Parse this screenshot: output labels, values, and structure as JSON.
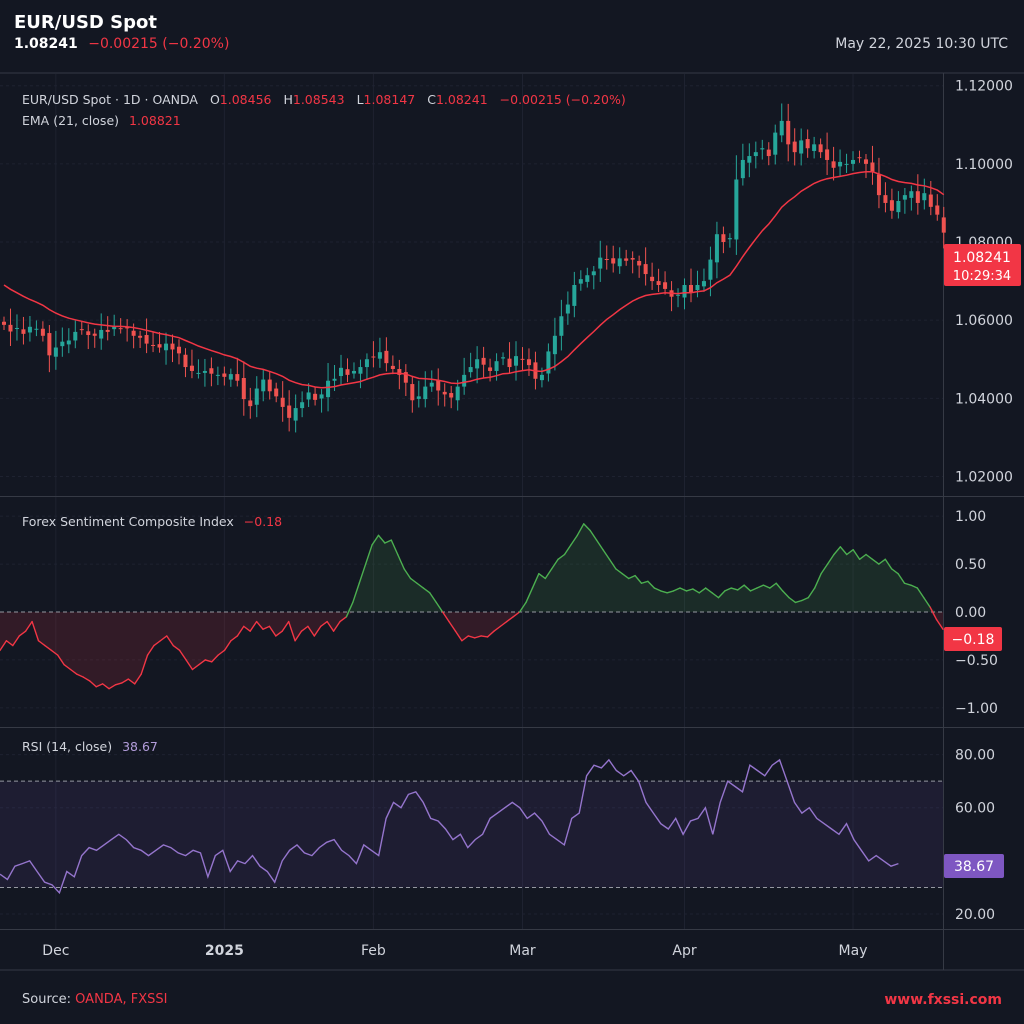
{
  "header": {
    "title": "EUR/USD Spot",
    "price": "1.08241",
    "change": "−0.00215 (−0.20%)",
    "datetime": "May 22, 2025 10:30 UTC"
  },
  "footer": {
    "source_label": "Source:",
    "source_value": "OANDA, FXSSI",
    "site": "www.fxssi.com"
  },
  "colors": {
    "up": "#26a69a",
    "down": "#ef5350",
    "ema": "#f23645",
    "sent_pos": "#4caf50",
    "sent_neg": "#f23645",
    "rsi": "#9575cd",
    "background": "#131722",
    "grid": "#1e2230"
  },
  "chart_data": [
    {
      "type": "candlestick",
      "legend": {
        "symbol": "EUR/USD Spot · 1D · OANDA",
        "o_label": "O",
        "o": "1.08456",
        "h_label": "H",
        "h": "1.08543",
        "l_label": "L",
        "l": "1.08147",
        "c_label": "C",
        "c": "1.08241",
        "change": "−0.00215 (−0.20%)",
        "ema_label": "EMA (21, close)",
        "ema_value": "1.08821"
      },
      "ylim": [
        1.015,
        1.123
      ],
      "y_ticks": [
        "1.12000",
        "1.10000",
        "1.08000",
        "1.06000",
        "1.04000",
        "1.02000"
      ],
      "last_price_label": "1.08241",
      "countdown_label": "10:29:34",
      "x_ticks": [
        "Dec",
        "2025",
        "Feb",
        "Mar",
        "Apr",
        "May"
      ],
      "x_tick_index": [
        8,
        34,
        57,
        80,
        105,
        131
      ],
      "closes": [
        1.0588,
        1.0571,
        1.058,
        1.0565,
        1.0583,
        1.0578,
        1.056,
        1.051,
        1.053,
        1.0545,
        1.0548,
        1.057,
        1.0575,
        1.0562,
        1.056,
        1.0575,
        1.057,
        1.0583,
        1.0578,
        1.058,
        1.056,
        1.0555,
        1.054,
        1.0535,
        1.053,
        1.054,
        1.0525,
        1.0515,
        1.048,
        1.047,
        1.0465,
        1.047,
        1.0463,
        1.046,
        1.0455,
        1.0462,
        1.0445,
        1.0398,
        1.038,
        1.0425,
        1.0448,
        1.0418,
        1.0405,
        1.0378,
        1.035,
        1.0375,
        1.039,
        1.0415,
        1.0396,
        1.041,
        1.0445,
        1.045,
        1.0478,
        1.046,
        1.047,
        1.048,
        1.05,
        1.0505,
        1.0518,
        1.049,
        1.0475,
        1.046,
        1.044,
        1.0395,
        1.0405,
        1.043,
        1.044,
        1.042,
        1.041,
        1.0402,
        1.043,
        1.046,
        1.048,
        1.05,
        1.0486,
        1.047,
        1.0495,
        1.0505,
        1.048,
        1.0508,
        1.05,
        1.0485,
        1.045,
        1.046,
        1.052,
        1.056,
        1.061,
        1.064,
        1.069,
        1.0705,
        1.0715,
        1.0725,
        1.076,
        1.0755,
        1.0745,
        1.0758,
        1.0752,
        1.0755,
        1.074,
        1.0718,
        1.07,
        1.069,
        1.068,
        1.066,
        1.0665,
        1.069,
        1.067,
        1.069,
        1.07,
        1.0755,
        1.082,
        1.08,
        1.081,
        1.096,
        1.101,
        1.102,
        1.103,
        1.104,
        1.102,
        1.108,
        1.111,
        1.105,
        1.103,
        1.106,
        1.104,
        1.105,
        1.103,
        1.101,
        1.099,
        1.1005,
        1.1,
        1.101,
        1.1015,
        1.1,
        1.098,
        1.092,
        1.09,
        1.088,
        1.0905,
        1.092,
        1.093,
        1.09,
        1.0925,
        1.089,
        1.087,
        1.0824
      ],
      "ema": [
        1.069,
        1.0679,
        1.067,
        1.0661,
        1.0653,
        1.0646,
        1.0638,
        1.0627,
        1.0618,
        1.0611,
        1.0605,
        1.0601,
        1.0597,
        1.0593,
        1.059,
        1.0588,
        1.0586,
        1.0584,
        1.0584,
        1.0583,
        1.0581,
        1.0578,
        1.0574,
        1.057,
        1.0566,
        1.0563,
        1.0559,
        1.0555,
        1.0548,
        1.0541,
        1.0534,
        1.0528,
        1.0522,
        1.0517,
        1.0511,
        1.0507,
        1.0501,
        1.0492,
        1.0482,
        1.0477,
        1.0474,
        1.0469,
        1.0463,
        1.0456,
        1.0446,
        1.044,
        1.0435,
        1.0433,
        1.0429,
        1.0427,
        1.0428,
        1.043,
        1.0434,
        1.0437,
        1.044,
        1.0443,
        1.0449,
        1.0454,
        1.046,
        1.0463,
        1.0464,
        1.0464,
        1.0462,
        1.0456,
        1.0451,
        1.045,
        1.0449,
        1.0446,
        1.0443,
        1.0439,
        1.0438,
        1.0441,
        1.0444,
        1.0449,
        1.0452,
        1.0454,
        1.0458,
        1.0463,
        1.0464,
        1.0468,
        1.0471,
        1.0473,
        1.047,
        1.0469,
        1.0474,
        1.0482,
        1.0494,
        1.0507,
        1.0524,
        1.054,
        1.0556,
        1.0571,
        1.0587,
        1.0602,
        1.0614,
        1.0627,
        1.0638,
        1.0649,
        1.0657,
        1.0663,
        1.0666,
        1.0668,
        1.067,
        1.0669,
        1.0668,
        1.067,
        1.067,
        1.0673,
        1.0675,
        1.0683,
        1.0696,
        1.0705,
        1.0715,
        1.0738,
        1.0763,
        1.0786,
        1.0808,
        1.0829,
        1.0846,
        1.0867,
        1.0889,
        1.0904,
        1.0916,
        1.093,
        1.094,
        1.095,
        1.0957,
        1.0962,
        1.0965,
        1.0968,
        1.0971,
        1.0975,
        1.0978,
        1.098,
        1.098,
        1.0974,
        1.0968,
        1.096,
        1.0955,
        1.0952,
        1.095,
        1.0946,
        1.0944,
        1.0939,
        1.0933,
        1.0921
      ]
    },
    {
      "type": "area",
      "title": "Forex Sentiment Composite Index",
      "value_label": "−0.18",
      "ylim": [
        -1.2,
        1.2
      ],
      "y_ticks": [
        "1.00",
        "0.50",
        "0.00",
        "−0.50",
        "−1.00"
      ],
      "values": [
        -0.4,
        -0.3,
        -0.35,
        -0.25,
        -0.2,
        -0.1,
        -0.3,
        -0.35,
        -0.4,
        -0.45,
        -0.55,
        -0.6,
        -0.65,
        -0.68,
        -0.72,
        -0.78,
        -0.75,
        -0.8,
        -0.76,
        -0.74,
        -0.7,
        -0.75,
        -0.65,
        -0.45,
        -0.35,
        -0.3,
        -0.25,
        -0.35,
        -0.4,
        -0.5,
        -0.6,
        -0.55,
        -0.5,
        -0.52,
        -0.45,
        -0.4,
        -0.3,
        -0.25,
        -0.15,
        -0.2,
        -0.1,
        -0.18,
        -0.15,
        -0.25,
        -0.2,
        -0.1,
        -0.3,
        -0.2,
        -0.15,
        -0.25,
        -0.15,
        -0.1,
        -0.2,
        -0.1,
        -0.05,
        0.1,
        0.3,
        0.5,
        0.7,
        0.8,
        0.72,
        0.75,
        0.6,
        0.45,
        0.35,
        0.3,
        0.25,
        0.2,
        0.1,
        0.0,
        -0.1,
        -0.2,
        -0.3,
        -0.25,
        -0.27,
        -0.25,
        -0.26,
        -0.2,
        -0.15,
        -0.1,
        -0.05,
        0.0,
        0.1,
        0.25,
        0.4,
        0.35,
        0.45,
        0.55,
        0.6,
        0.7,
        0.8,
        0.92,
        0.85,
        0.75,
        0.65,
        0.55,
        0.45,
        0.4,
        0.35,
        0.38,
        0.3,
        0.32,
        0.25,
        0.22,
        0.2,
        0.22,
        0.25,
        0.22,
        0.24,
        0.2,
        0.25,
        0.2,
        0.15,
        0.22,
        0.25,
        0.23,
        0.28,
        0.22,
        0.25,
        0.28,
        0.25,
        0.3,
        0.22,
        0.15,
        0.1,
        0.12,
        0.15,
        0.25,
        0.4,
        0.5,
        0.6,
        0.68,
        0.6,
        0.65,
        0.55,
        0.6,
        0.55,
        0.5,
        0.55,
        0.45,
        0.4,
        0.3,
        0.28,
        0.25,
        0.15,
        0.05,
        -0.08,
        -0.18
      ],
      "positive_color": "#4caf50",
      "negative_color": "#f23645"
    },
    {
      "type": "line",
      "title": "RSI (14, close)",
      "value_label": "38.67",
      "ylim": [
        14,
        90
      ],
      "y_ticks": [
        "80.00",
        "60.00",
        "20.00"
      ],
      "bands": [
        70,
        30
      ],
      "values": [
        35,
        33,
        38,
        39,
        40,
        36,
        32,
        31,
        28,
        36,
        34,
        42,
        45,
        44,
        46,
        48,
        50,
        48,
        45,
        44,
        42,
        44,
        46,
        45,
        43,
        42,
        44,
        43,
        34,
        42,
        44,
        36,
        40,
        39,
        42,
        38,
        36,
        32,
        40,
        44,
        46,
        43,
        42,
        45,
        47,
        48,
        44,
        42,
        39,
        46,
        44,
        42,
        56,
        62,
        60,
        65,
        66,
        62,
        56,
        55,
        52,
        48,
        50,
        45,
        48,
        50,
        56,
        58,
        60,
        62,
        60,
        56,
        58,
        55,
        50,
        48,
        46,
        56,
        58,
        72,
        76,
        75,
        78,
        74,
        72,
        74,
        70,
        62,
        58,
        54,
        52,
        56,
        50,
        55,
        56,
        60,
        50,
        62,
        70,
        68,
        66,
        76,
        74,
        72,
        76,
        78,
        70,
        62,
        58,
        60,
        56,
        54,
        52,
        50,
        54,
        48,
        44,
        40,
        42,
        40,
        38,
        39
      ],
      "line_color": "#9575cd"
    }
  ]
}
